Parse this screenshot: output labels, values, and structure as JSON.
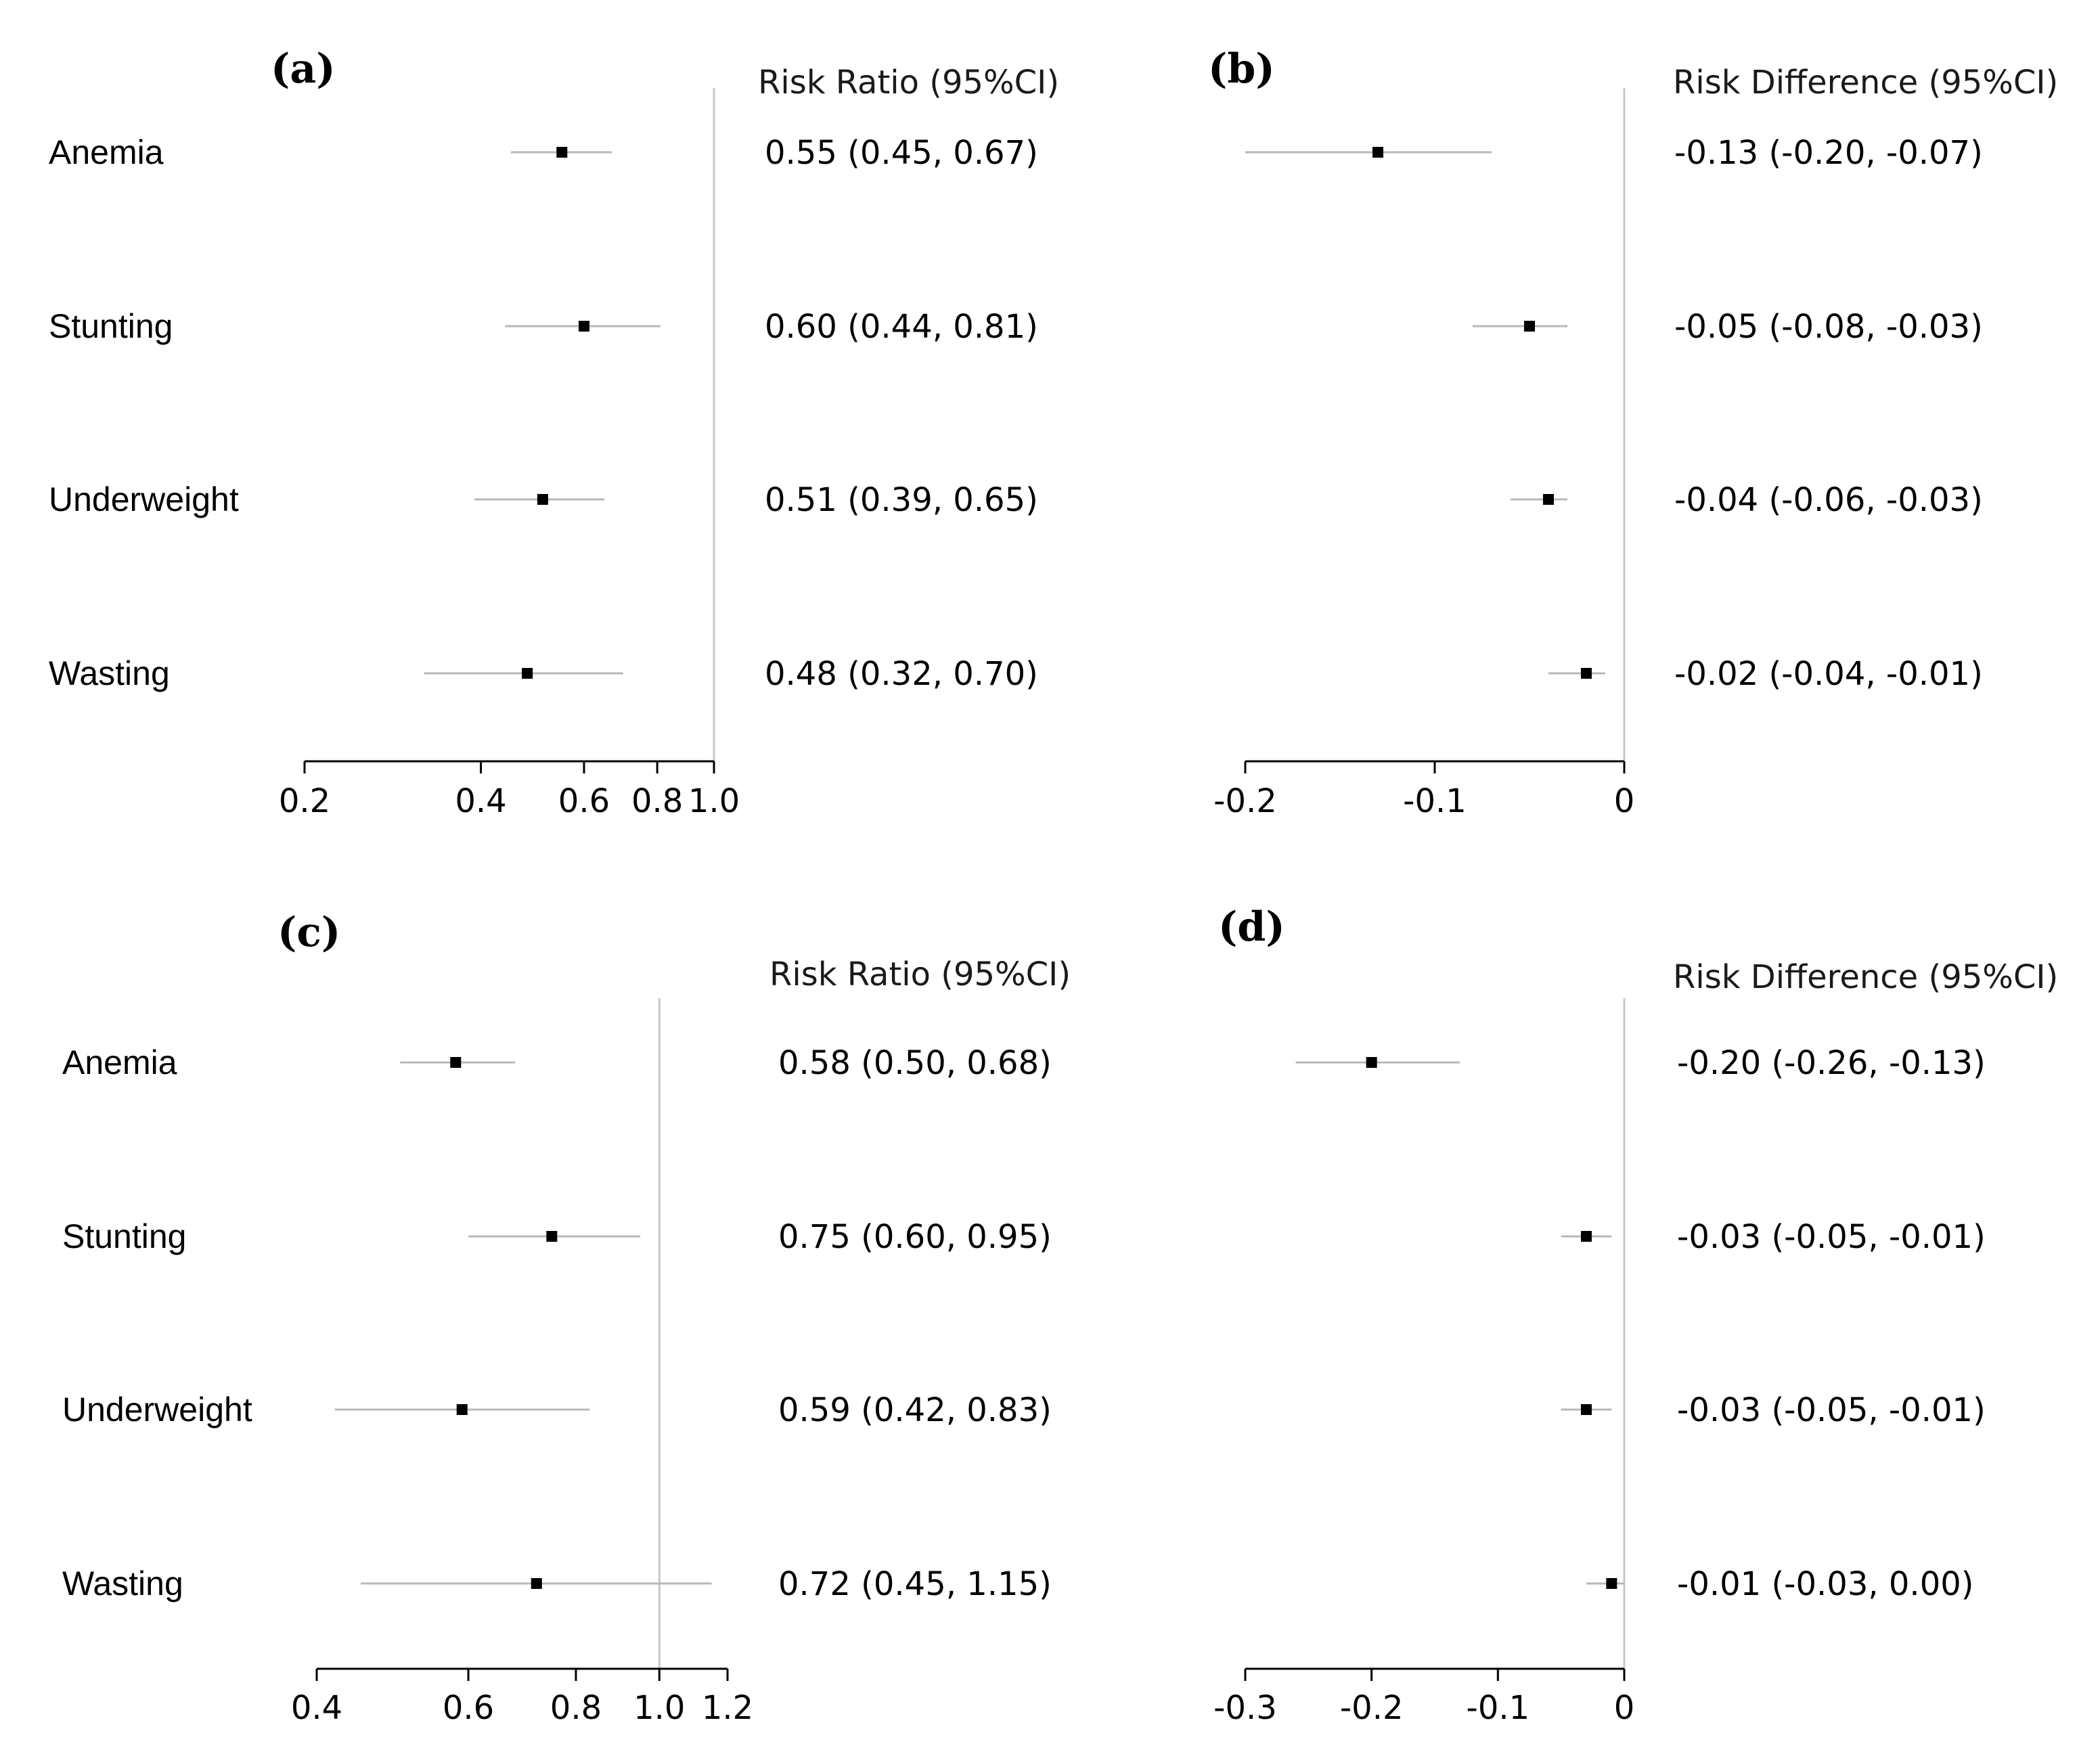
{
  "chart_data": [
    {
      "type": "forest",
      "panel": "(a)",
      "column_header": "Risk Ratio (95%CI)",
      "scale": "log",
      "reference": 1.0,
      "xlim": [
        0.2,
        1.0
      ],
      "ticks": [
        0.2,
        0.4,
        0.6,
        0.8,
        1.0
      ],
      "tick_labels": [
        "0.2",
        "0.4",
        "0.6",
        "0.8",
        "1.0"
      ],
      "rows": [
        {
          "label": "Anemia",
          "estimate": 0.55,
          "lower": 0.45,
          "upper": 0.67,
          "text": "0.55 (0.45, 0.67)"
        },
        {
          "label": "Stunting",
          "estimate": 0.6,
          "lower": 0.44,
          "upper": 0.81,
          "text": "0.60 (0.44, 0.81)"
        },
        {
          "label": "Underweight",
          "estimate": 0.51,
          "lower": 0.39,
          "upper": 0.65,
          "text": "0.51 (0.39, 0.65)"
        },
        {
          "label": "Wasting",
          "estimate": 0.48,
          "lower": 0.32,
          "upper": 0.7,
          "text": "0.48 (0.32, 0.70)"
        }
      ]
    },
    {
      "type": "forest",
      "panel": "(b)",
      "column_header": "Risk Difference (95%CI)",
      "scale": "linear",
      "reference": 0,
      "xlim": [
        -0.2,
        0
      ],
      "ticks": [
        -0.2,
        -0.1,
        0
      ],
      "tick_labels": [
        "-0.2",
        "-0.1",
        "0"
      ],
      "rows": [
        {
          "label": "Anemia",
          "estimate": -0.13,
          "lower": -0.2,
          "upper": -0.07,
          "text": "-0.13 (-0.20, -0.07)"
        },
        {
          "label": "Stunting",
          "estimate": -0.05,
          "lower": -0.08,
          "upper": -0.03,
          "text": "-0.05 (-0.08, -0.03)"
        },
        {
          "label": "Underweight",
          "estimate": -0.04,
          "lower": -0.06,
          "upper": -0.03,
          "text": "-0.04 (-0.06, -0.03)"
        },
        {
          "label": "Wasting",
          "estimate": -0.02,
          "lower": -0.04,
          "upper": -0.01,
          "text": "-0.02 (-0.04, -0.01)"
        }
      ]
    },
    {
      "type": "forest",
      "panel": "(c)",
      "column_header": "Risk Ratio (95%CI)",
      "scale": "log",
      "reference": 1.0,
      "xlim": [
        0.4,
        1.2
      ],
      "ticks": [
        0.4,
        0.6,
        0.8,
        1.0,
        1.2
      ],
      "tick_labels": [
        "0.4",
        "0.6",
        "0.8",
        "1.0",
        "1.2"
      ],
      "rows": [
        {
          "label": "Anemia",
          "estimate": 0.58,
          "lower": 0.5,
          "upper": 0.68,
          "text": "0.58 (0.50, 0.68)"
        },
        {
          "label": "Stunting",
          "estimate": 0.75,
          "lower": 0.6,
          "upper": 0.95,
          "text": "0.75 (0.60, 0.95)"
        },
        {
          "label": "Underweight",
          "estimate": 0.59,
          "lower": 0.42,
          "upper": 0.83,
          "text": "0.59 (0.42, 0.83)"
        },
        {
          "label": "Wasting",
          "estimate": 0.72,
          "lower": 0.45,
          "upper": 1.15,
          "text": "0.72 (0.45, 1.15)"
        }
      ]
    },
    {
      "type": "forest",
      "panel": "(d)",
      "column_header": "Risk Difference (95%CI)",
      "scale": "linear",
      "reference": 0,
      "xlim": [
        -0.3,
        0
      ],
      "ticks": [
        -0.3,
        -0.2,
        -0.1,
        0
      ],
      "tick_labels": [
        "-0.3",
        "-0.2",
        "-0.1",
        "0"
      ],
      "rows": [
        {
          "label": "",
          "estimate": -0.2,
          "lower": -0.26,
          "upper": -0.13,
          "text": "-0.20 (-0.26, -0.13)"
        },
        {
          "label": "",
          "estimate": -0.03,
          "lower": -0.05,
          "upper": -0.01,
          "text": "-0.03 (-0.05, -0.01)"
        },
        {
          "label": "",
          "estimate": -0.03,
          "lower": -0.05,
          "upper": -0.01,
          "text": "-0.03 (-0.05, -0.01)"
        },
        {
          "label": "",
          "estimate": -0.01,
          "lower": -0.03,
          "upper": 0.0,
          "text": "-0.01 (-0.03, 0.00)"
        }
      ]
    }
  ]
}
